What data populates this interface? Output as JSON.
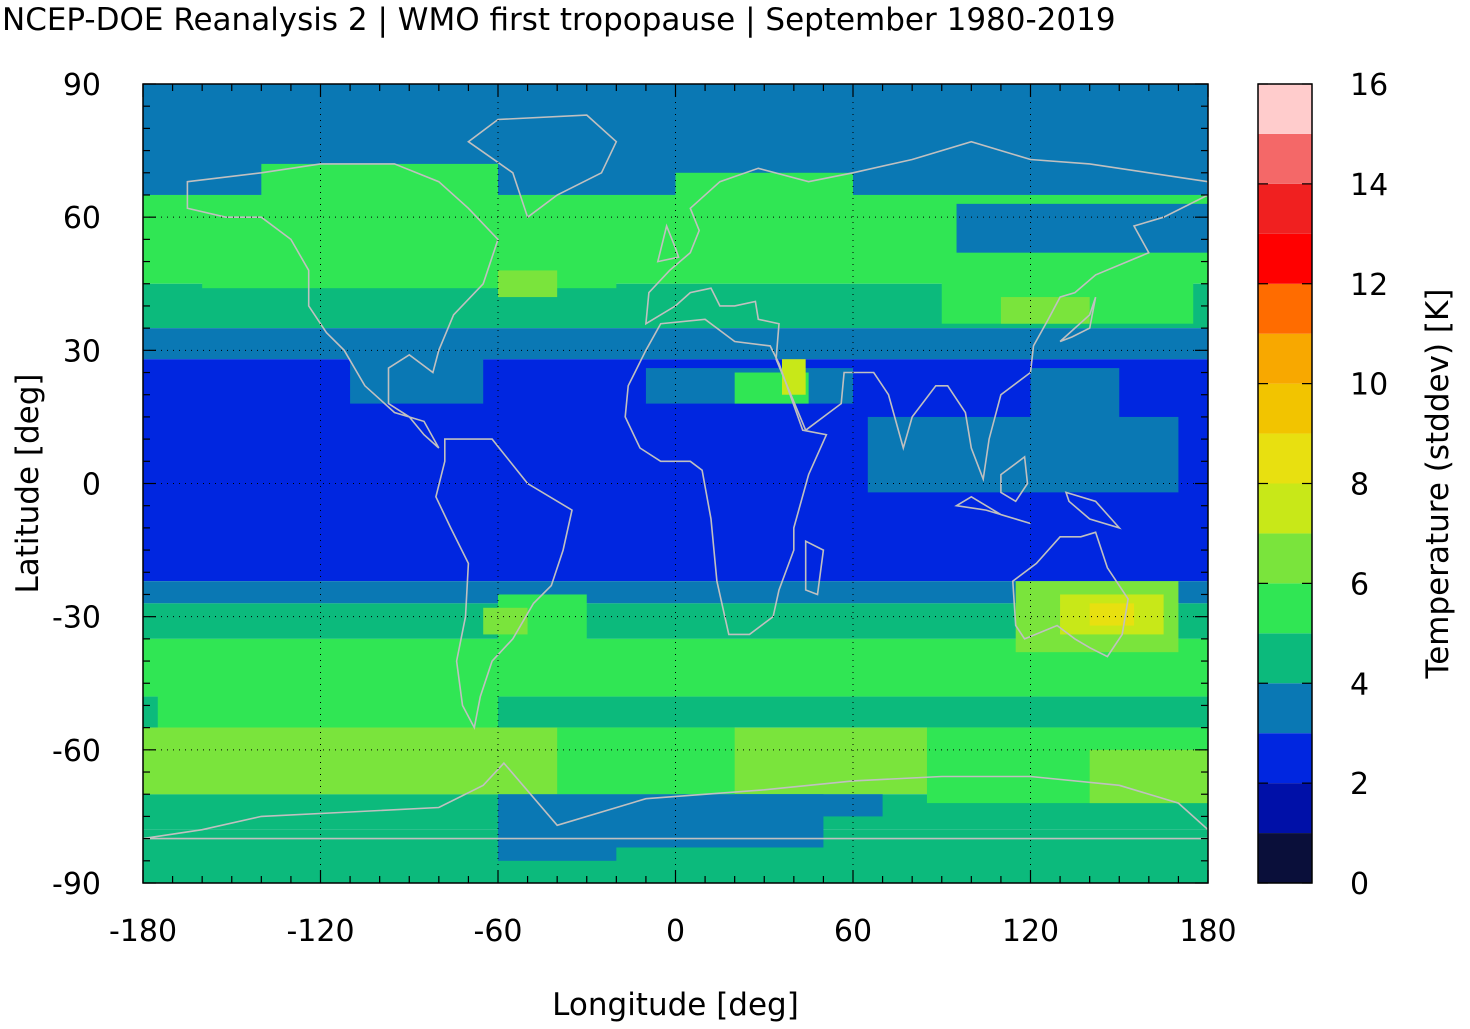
{
  "chart_data": {
    "type": "heatmap",
    "title": "NCEP-DOE Reanalysis 2 | WMO first tropopause | September 1980-2019",
    "xlabel": "Longitude [deg]",
    "ylabel": "Latitude [deg]",
    "xlim": [
      -180,
      180
    ],
    "ylim": [
      -90,
      90
    ],
    "xticks": [
      -180,
      -120,
      -60,
      0,
      60,
      120,
      180
    ],
    "yticks": [
      90,
      60,
      30,
      0,
      -30,
      -60,
      -90
    ],
    "grid": true,
    "colorbar": {
      "label": "Temperature (stddev) [K]",
      "range": [
        0,
        16
      ],
      "ticks": [
        16,
        14,
        12,
        10,
        8,
        6,
        4,
        2,
        0
      ],
      "levels": [
        {
          "min": 0,
          "max": 1,
          "color": "#0a0f3a"
        },
        {
          "min": 1,
          "max": 2,
          "color": "#0010a8"
        },
        {
          "min": 2,
          "max": 3,
          "color": "#0026e0"
        },
        {
          "min": 3,
          "max": 4,
          "color": "#0a78b4"
        },
        {
          "min": 4,
          "max": 5,
          "color": "#0cba7c"
        },
        {
          "min": 5,
          "max": 6,
          "color": "#30e654"
        },
        {
          "min": 6,
          "max": 7,
          "color": "#7ae43c"
        },
        {
          "min": 7,
          "max": 8,
          "color": "#c8e818"
        },
        {
          "min": 8,
          "max": 9,
          "color": "#e8e010"
        },
        {
          "min": 9,
          "max": 10,
          "color": "#f2c400"
        },
        {
          "min": 10,
          "max": 11,
          "color": "#f8a800"
        },
        {
          "min": 11,
          "max": 12,
          "color": "#ff6c00"
        },
        {
          "min": 12,
          "max": 13,
          "color": "#ff0000"
        },
        {
          "min": 13,
          "max": 14,
          "color": "#f02020"
        },
        {
          "min": 14,
          "max": 15,
          "color": "#f46868"
        },
        {
          "min": 15,
          "max": 16,
          "color": "#ffcccc"
        }
      ]
    },
    "latitude_bands": [
      {
        "lat_from": 90,
        "lat_to": 65,
        "value": 3.5
      },
      {
        "lat_from": 65,
        "lat_to": 45,
        "value": 5.3
      },
      {
        "lat_from": 45,
        "lat_to": 35,
        "value": 4.5
      },
      {
        "lat_from": 35,
        "lat_to": 28,
        "value": 3.5
      },
      {
        "lat_from": 28,
        "lat_to": -22,
        "value": 2.5
      },
      {
        "lat_from": -22,
        "lat_to": -27,
        "value": 3.5
      },
      {
        "lat_from": -27,
        "lat_to": -35,
        "value": 4.5
      },
      {
        "lat_from": -35,
        "lat_to": -48,
        "value": 5.5
      },
      {
        "lat_from": -48,
        "lat_to": -55,
        "value": 4.5
      },
      {
        "lat_from": -55,
        "lat_to": -70,
        "value": 6.5
      },
      {
        "lat_from": -70,
        "lat_to": -78,
        "value": 4.5
      },
      {
        "lat_from": -78,
        "lat_to": -90,
        "value": 4.5
      }
    ],
    "regional_anomalies": [
      {
        "lon": [
          -160,
          -20
        ],
        "lat": [
          62,
          44
        ],
        "value": 5.5
      },
      {
        "lon": [
          -60,
          -40
        ],
        "lat": [
          48,
          42
        ],
        "value": 6.5
      },
      {
        "lon": [
          -20,
          90
        ],
        "lat": [
          65,
          50
        ],
        "value": 5.5
      },
      {
        "lon": [
          90,
          175
        ],
        "lat": [
          60,
          36
        ],
        "value": 5.5
      },
      {
        "lon": [
          110,
          140
        ],
        "lat": [
          42,
          36
        ],
        "value": 6.5
      },
      {
        "lon": [
          95,
          180
        ],
        "lat": [
          63,
          52
        ],
        "value": 3.5
      },
      {
        "lon": [
          -140,
          -60
        ],
        "lat": [
          72,
          64
        ],
        "value": 5.5
      },
      {
        "lon": [
          0,
          60
        ],
        "lat": [
          70,
          62
        ],
        "value": 5.5
      },
      {
        "lon": [
          -10,
          60
        ],
        "lat": [
          26,
          18
        ],
        "value": 3.5
      },
      {
        "lon": [
          20,
          45
        ],
        "lat": [
          25,
          18
        ],
        "value": 5.5
      },
      {
        "lon": [
          36,
          44
        ],
        "lat": [
          28,
          20
        ],
        "value": 7.5
      },
      {
        "lon": [
          65,
          170
        ],
        "lat": [
          15,
          -2
        ],
        "value": 3.5
      },
      {
        "lon": [
          120,
          150
        ],
        "lat": [
          26,
          14
        ],
        "value": 3.5
      },
      {
        "lon": [
          -110,
          -65
        ],
        "lat": [
          30,
          18
        ],
        "value": 3.5
      },
      {
        "lon": [
          -175,
          -60
        ],
        "lat": [
          -42,
          -55
        ],
        "value": 5.5
      },
      {
        "lon": [
          -60,
          -30
        ],
        "lat": [
          -25,
          -40
        ],
        "value": 5.5
      },
      {
        "lon": [
          -65,
          -50
        ],
        "lat": [
          -28,
          -34
        ],
        "value": 6.5
      },
      {
        "lon": [
          115,
          170
        ],
        "lat": [
          -22,
          -38
        ],
        "value": 6.5
      },
      {
        "lon": [
          130,
          165
        ],
        "lat": [
          -25,
          -34
        ],
        "value": 7.5
      },
      {
        "lon": [
          140,
          155
        ],
        "lat": [
          -27,
          -32
        ],
        "value": 8.0
      },
      {
        "lon": [
          -180,
          -40
        ],
        "lat": [
          -55,
          -70
        ],
        "value": 6.5
      },
      {
        "lon": [
          -130,
          -50
        ],
        "lat": [
          -58,
          -67
        ],
        "value": 6.5
      },
      {
        "lon": [
          -40,
          20
        ],
        "lat": [
          -55,
          -70
        ],
        "value": 5.5
      },
      {
        "lon": [
          85,
          180
        ],
        "lat": [
          -55,
          -72
        ],
        "value": 5.5
      },
      {
        "lon": [
          140,
          180
        ],
        "lat": [
          -60,
          -72
        ],
        "value": 6.5
      },
      {
        "lon": [
          -60,
          50
        ],
        "lat": [
          -70,
          -82
        ],
        "value": 3.5
      },
      {
        "lon": [
          -60,
          -20
        ],
        "lat": [
          -78,
          -85
        ],
        "value": 3.5
      },
      {
        "lon": [
          20,
          70
        ],
        "lat": [
          -70,
          -75
        ],
        "value": 3.5
      }
    ],
    "overlay": "coastlines (light grey)"
  }
}
